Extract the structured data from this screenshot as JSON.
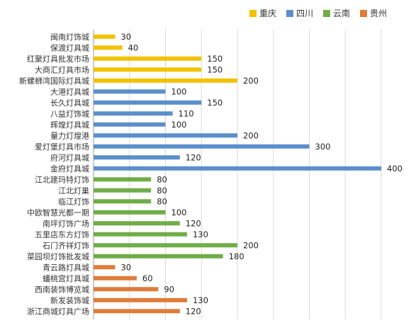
{
  "chart_data": {
    "type": "bar",
    "orientation": "horizontal",
    "title": "",
    "xlabel": "",
    "ylabel": "",
    "xlim": [
      0,
      400
    ],
    "grid": true,
    "legend_position": "top-right",
    "series": [
      {
        "name": "重庆",
        "color": "#F2C200",
        "categories": [
          "闽南灯饰城",
          "保渡灯具城",
          "红聚灯具批发市场",
          "大商汇灯具市场",
          "新螺蛳湾国际灯具城"
        ],
        "values": [
          30,
          40,
          150,
          150,
          200
        ]
      },
      {
        "name": "四川",
        "color": "#5B8FCC",
        "categories": [
          "大港灯具城",
          "长久灯具城",
          "八益灯饰城",
          "辉煌灯具城",
          "量力灯煌港",
          "爱灯堡灯具市场",
          "府河灯具城",
          "金府灯具城"
        ],
        "values": [
          100,
          150,
          110,
          100,
          200,
          300,
          120,
          400
        ]
      },
      {
        "name": "云南",
        "color": "#70AD47",
        "categories": [
          "江北建玛特灯饰",
          "江北灯巢",
          "临江灯饰",
          "中欧智慧光都一期",
          "南坪灯饰广场",
          "五里店东方灯饰",
          "石门齐祥灯饰",
          "菜园坝灯饰批发城"
        ],
        "values": [
          80,
          80,
          80,
          100,
          120,
          130,
          200,
          180
        ]
      },
      {
        "name": "贵州",
        "color": "#E07B39",
        "categories": [
          "青云路灯具城",
          "蟠桃宫灯具城",
          "西南装饰博览城",
          "新发装饰城",
          "浙江商城灯具广场"
        ],
        "values": [
          30,
          60,
          90,
          130,
          120
        ]
      }
    ]
  }
}
